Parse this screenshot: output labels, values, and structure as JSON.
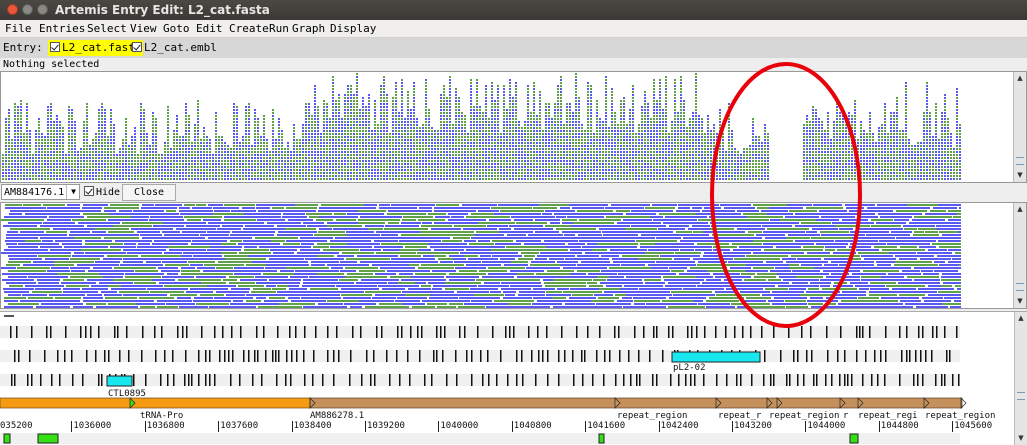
{
  "window": {
    "title": "Artemis Entry Edit: L2_cat.fasta"
  },
  "menu": {
    "items": [
      "File",
      "Entries",
      "Select",
      "View",
      "Goto",
      "Edit",
      "Create",
      "Run",
      "Graph",
      "Display"
    ]
  },
  "entries": {
    "label": "Entry:",
    "items": [
      {
        "name": "L2_cat.fasta",
        "checked": true,
        "highlighted": true
      },
      {
        "name": "L2_cat.embl",
        "checked": true,
        "highlighted": false
      }
    ]
  },
  "status": {
    "text": "Nothing selected"
  },
  "bam": {
    "sequence": "AM884176.1",
    "hide_label": "Hide",
    "hide_checked": true,
    "close_label": "Close"
  },
  "features": {
    "region_labels": [
      "AM886278.1",
      "repeat_region",
      "repeat_r",
      "repeat_region",
      "r",
      "repeat_regi",
      "repeat_region"
    ],
    "gene_labels": [
      "CTL0895",
      "pL2-02",
      "tRNA-Pro"
    ],
    "ruler": [
      "035200",
      "1036000",
      "1036800",
      "1037600",
      "1038400",
      "1039200",
      "1040000",
      "1040800",
      "1041600",
      "1042400",
      "1043200",
      "1044000",
      "1044800",
      "1045600"
    ]
  },
  "annotation": {
    "shape": "ellipse",
    "color": "#e8000b"
  },
  "colors": {
    "reads_blue": "#5a5af2",
    "reads_green": "#5fa04a",
    "feature_orange": "#f59a12",
    "feature_brown": "#c4915d",
    "feature_cyan": "#18e7f0",
    "feature_green": "#34e011",
    "highlight": "#ffff00"
  }
}
